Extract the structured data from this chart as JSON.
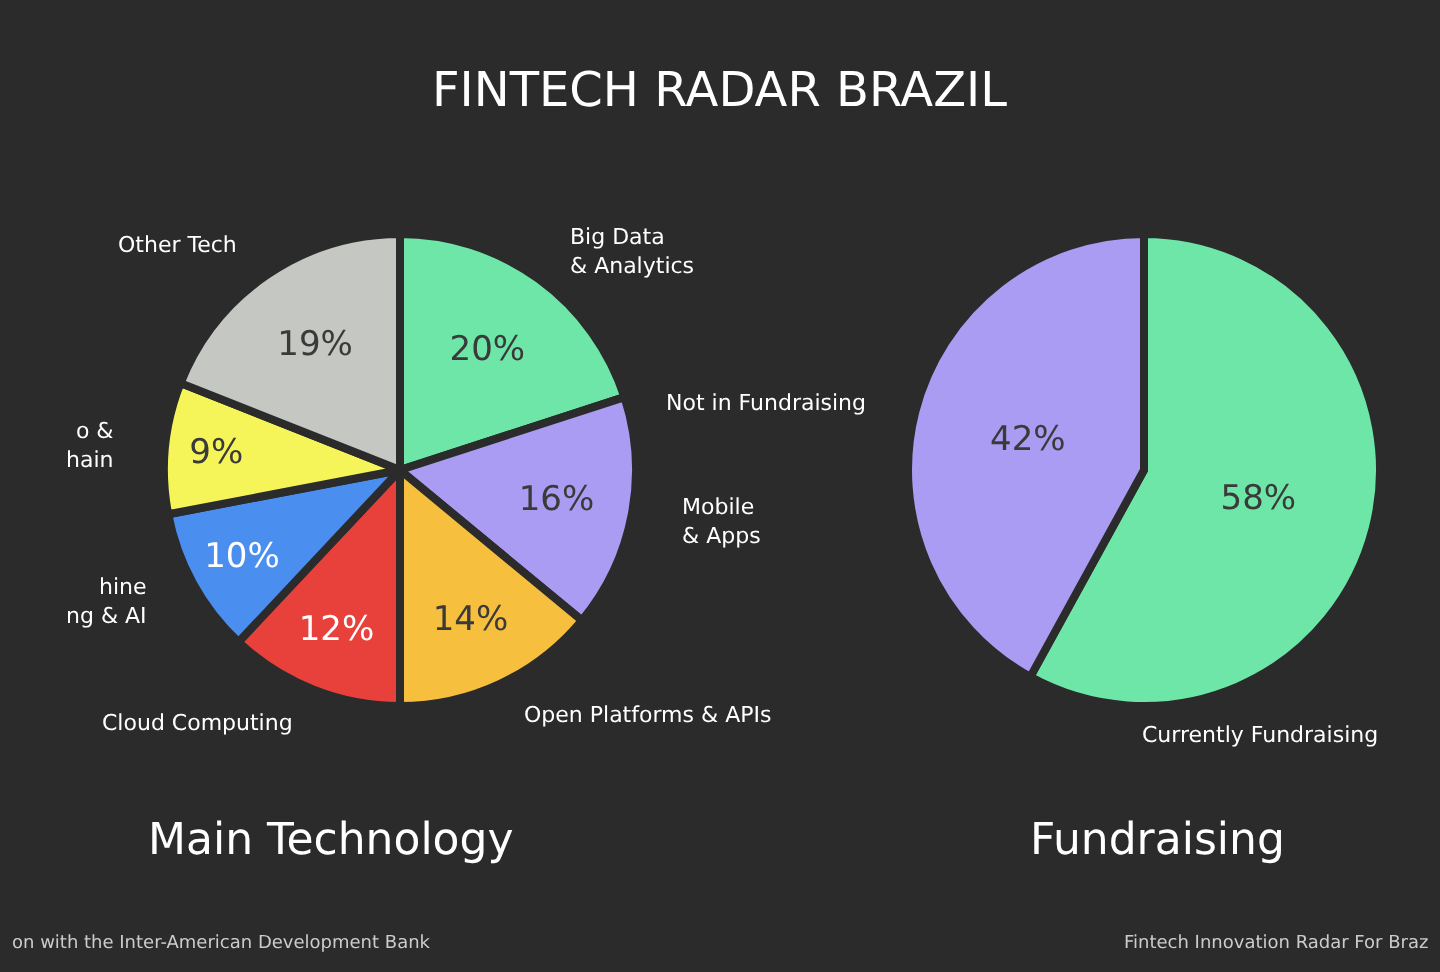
{
  "chart_data": [
    {
      "type": "pie",
      "title": "FINTECH RADAR BRAZIL",
      "subtitle": "Main Technology",
      "categories": [
        "Big Data\n& Analytics",
        "Mobile\n& Apps",
        "Open Platforms & APIs",
        "Cloud Computing",
        "hine\nng & AI",
        "o &\nhain",
        "Other Tech"
      ],
      "values": [
        20,
        16,
        14,
        12,
        10,
        9,
        19
      ],
      "colors": [
        "#6ee6a8",
        "#a99cf2",
        "#f7bf3e",
        "#e8413c",
        "#4a8ef0",
        "#f5f55a",
        "#c5c7c3"
      ],
      "value_labels": [
        "20%",
        "16%",
        "14%",
        "12%",
        "10%",
        "9%",
        "19%"
      ],
      "annotations": [
        "on with the Inter-American Development Bank"
      ]
    },
    {
      "type": "pie",
      "subtitle": "Fundraising",
      "categories": [
        "Currently Fundraising",
        "Not in Fundraising"
      ],
      "values": [
        58,
        42
      ],
      "colors": [
        "#6ee6a8",
        "#a99cf2"
      ],
      "value_labels": [
        "58%",
        "42%"
      ],
      "annotations": [
        "Fintech Innovation Radar For Braz"
      ]
    }
  ]
}
